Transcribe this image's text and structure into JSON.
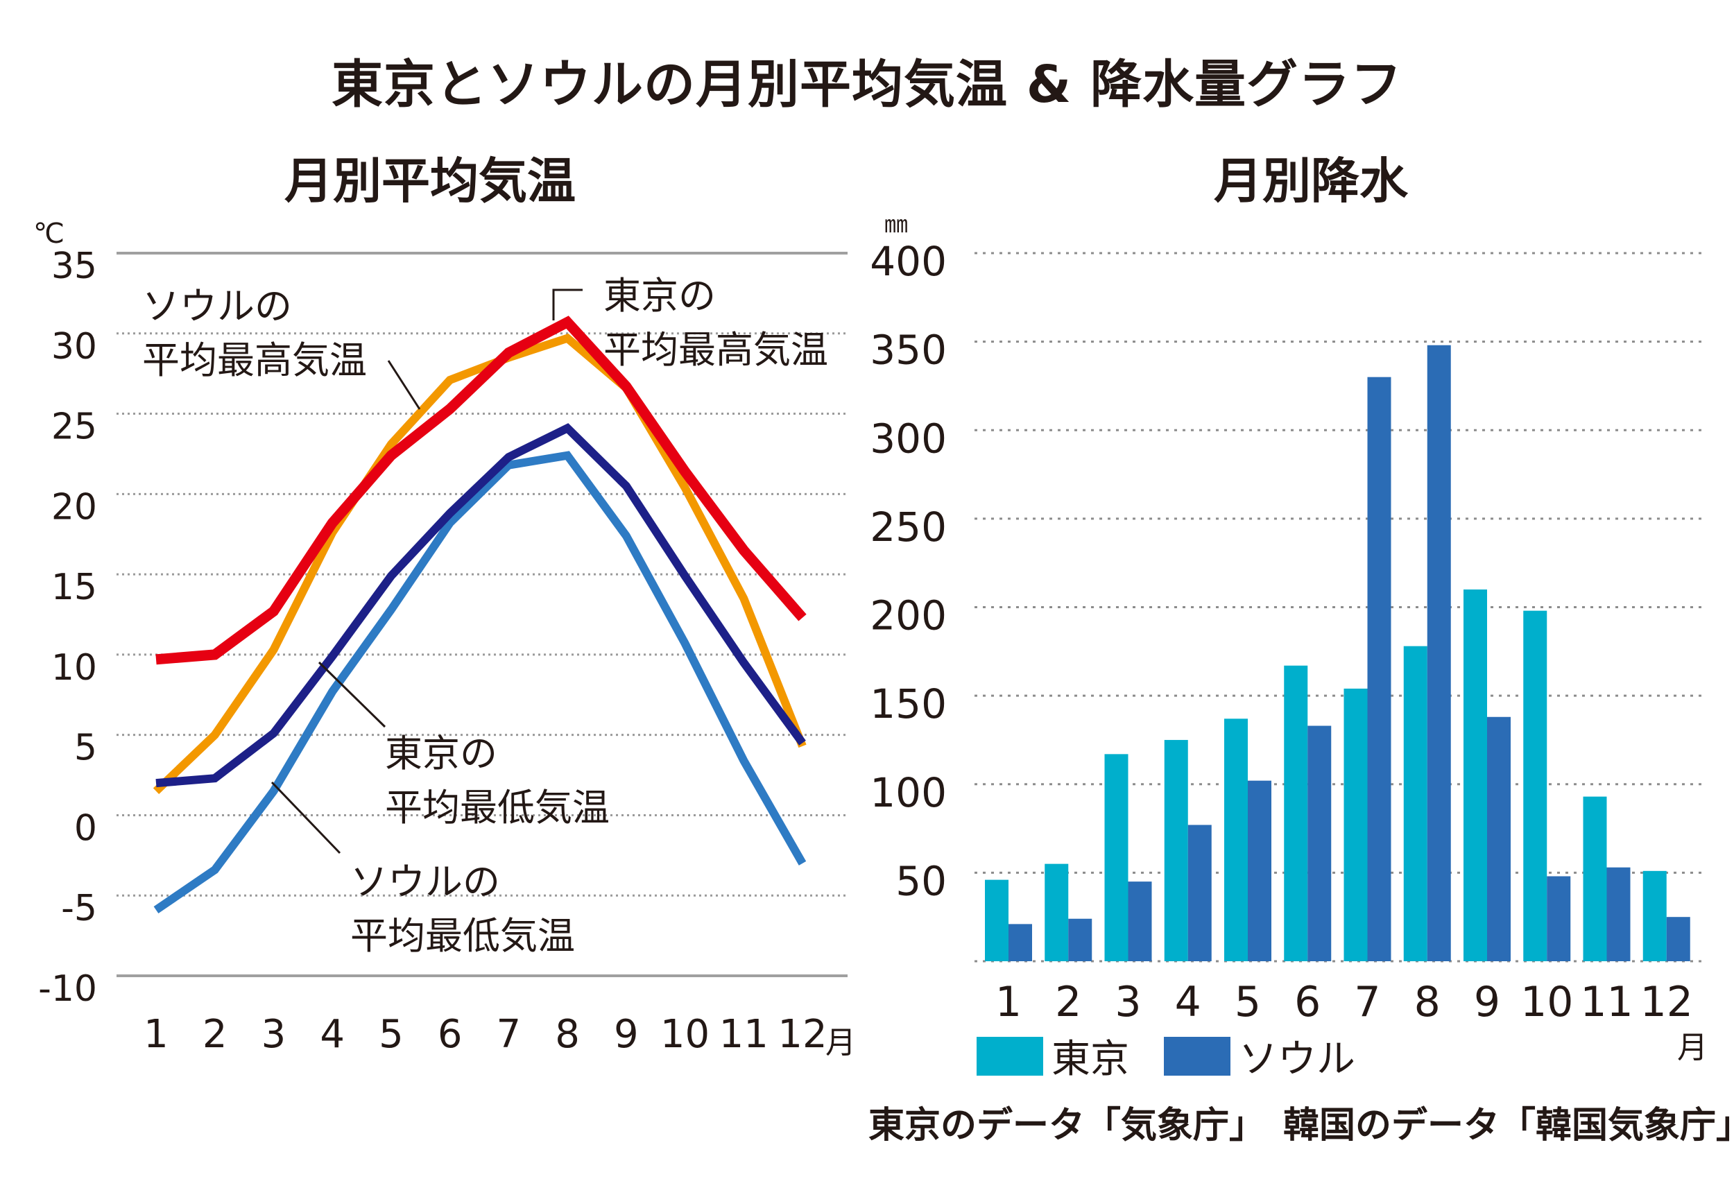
{
  "title": "東京とソウルの月別平均気温 & 降水量グラフ",
  "source_note": "東京のデータ「気象庁」　韓国のデータ「韓国気象庁」",
  "chart_data": [
    {
      "type": "line",
      "title": "月別平均気温",
      "ylabel": "℃",
      "xlabel": "月",
      "ylim": [
        -10,
        35
      ],
      "yticks": [
        35,
        30,
        25,
        20,
        15,
        10,
        5,
        0,
        -5,
        -10
      ],
      "grid": true,
      "categories": [
        "1",
        "2",
        "3",
        "4",
        "5",
        "6",
        "7",
        "8",
        "9",
        "10",
        "11",
        "12"
      ],
      "series": [
        {
          "name": "ソウルの平均最高気温",
          "label_lines": [
            "ソウルの",
            "平均最高気温"
          ],
          "color": "#F39800",
          "values": [
            1.5,
            5.0,
            10.3,
            17.6,
            23.1,
            27.1,
            28.5,
            29.7,
            26.6,
            20.4,
            13.5,
            4.3
          ]
        },
        {
          "name": "東京の平均最高気温",
          "label_lines": [
            "東京の",
            "平均最高気温"
          ],
          "color": "#E60012",
          "values": [
            9.7,
            10.0,
            12.7,
            18.2,
            22.4,
            25.3,
            28.8,
            30.7,
            26.7,
            21.4,
            16.5,
            12.3
          ]
        },
        {
          "name": "ソウルの平均最低気温",
          "label_lines": [
            "ソウルの",
            "平均最低気温"
          ],
          "color": "#2E7BC4",
          "values": [
            -5.9,
            -3.4,
            1.5,
            7.7,
            12.8,
            18.2,
            21.8,
            22.4,
            17.4,
            10.7,
            3.4,
            -3.0
          ]
        },
        {
          "name": "東京の平均最低気温",
          "label_lines": [
            "東京の",
            "平均最低気温"
          ],
          "color": "#1D2088",
          "values": [
            2.0,
            2.3,
            5.1,
            9.9,
            14.9,
            18.8,
            22.3,
            24.1,
            20.5,
            14.9,
            9.5,
            4.5
          ]
        }
      ]
    },
    {
      "type": "bar",
      "title": "月別降水",
      "ylabel": "㎜",
      "xlabel": "月",
      "ylim": [
        0,
        400
      ],
      "yticks": [
        400,
        350,
        300,
        250,
        200,
        150,
        100,
        50
      ],
      "grid": true,
      "legend": "bottom-left",
      "categories": [
        "1",
        "2",
        "3",
        "4",
        "5",
        "6",
        "7",
        "8",
        "9",
        "10",
        "11",
        "12"
      ],
      "series": [
        {
          "name": "東京",
          "color": "#00AFCC",
          "values": [
            46,
            55,
            117,
            125,
            137,
            167,
            154,
            178,
            210,
            198,
            93,
            51
          ]
        },
        {
          "name": "ソウル",
          "color": "#2B6CB5",
          "values": [
            21,
            24,
            45,
            77,
            102,
            133,
            330,
            348,
            138,
            48,
            53,
            25
          ]
        }
      ]
    }
  ]
}
